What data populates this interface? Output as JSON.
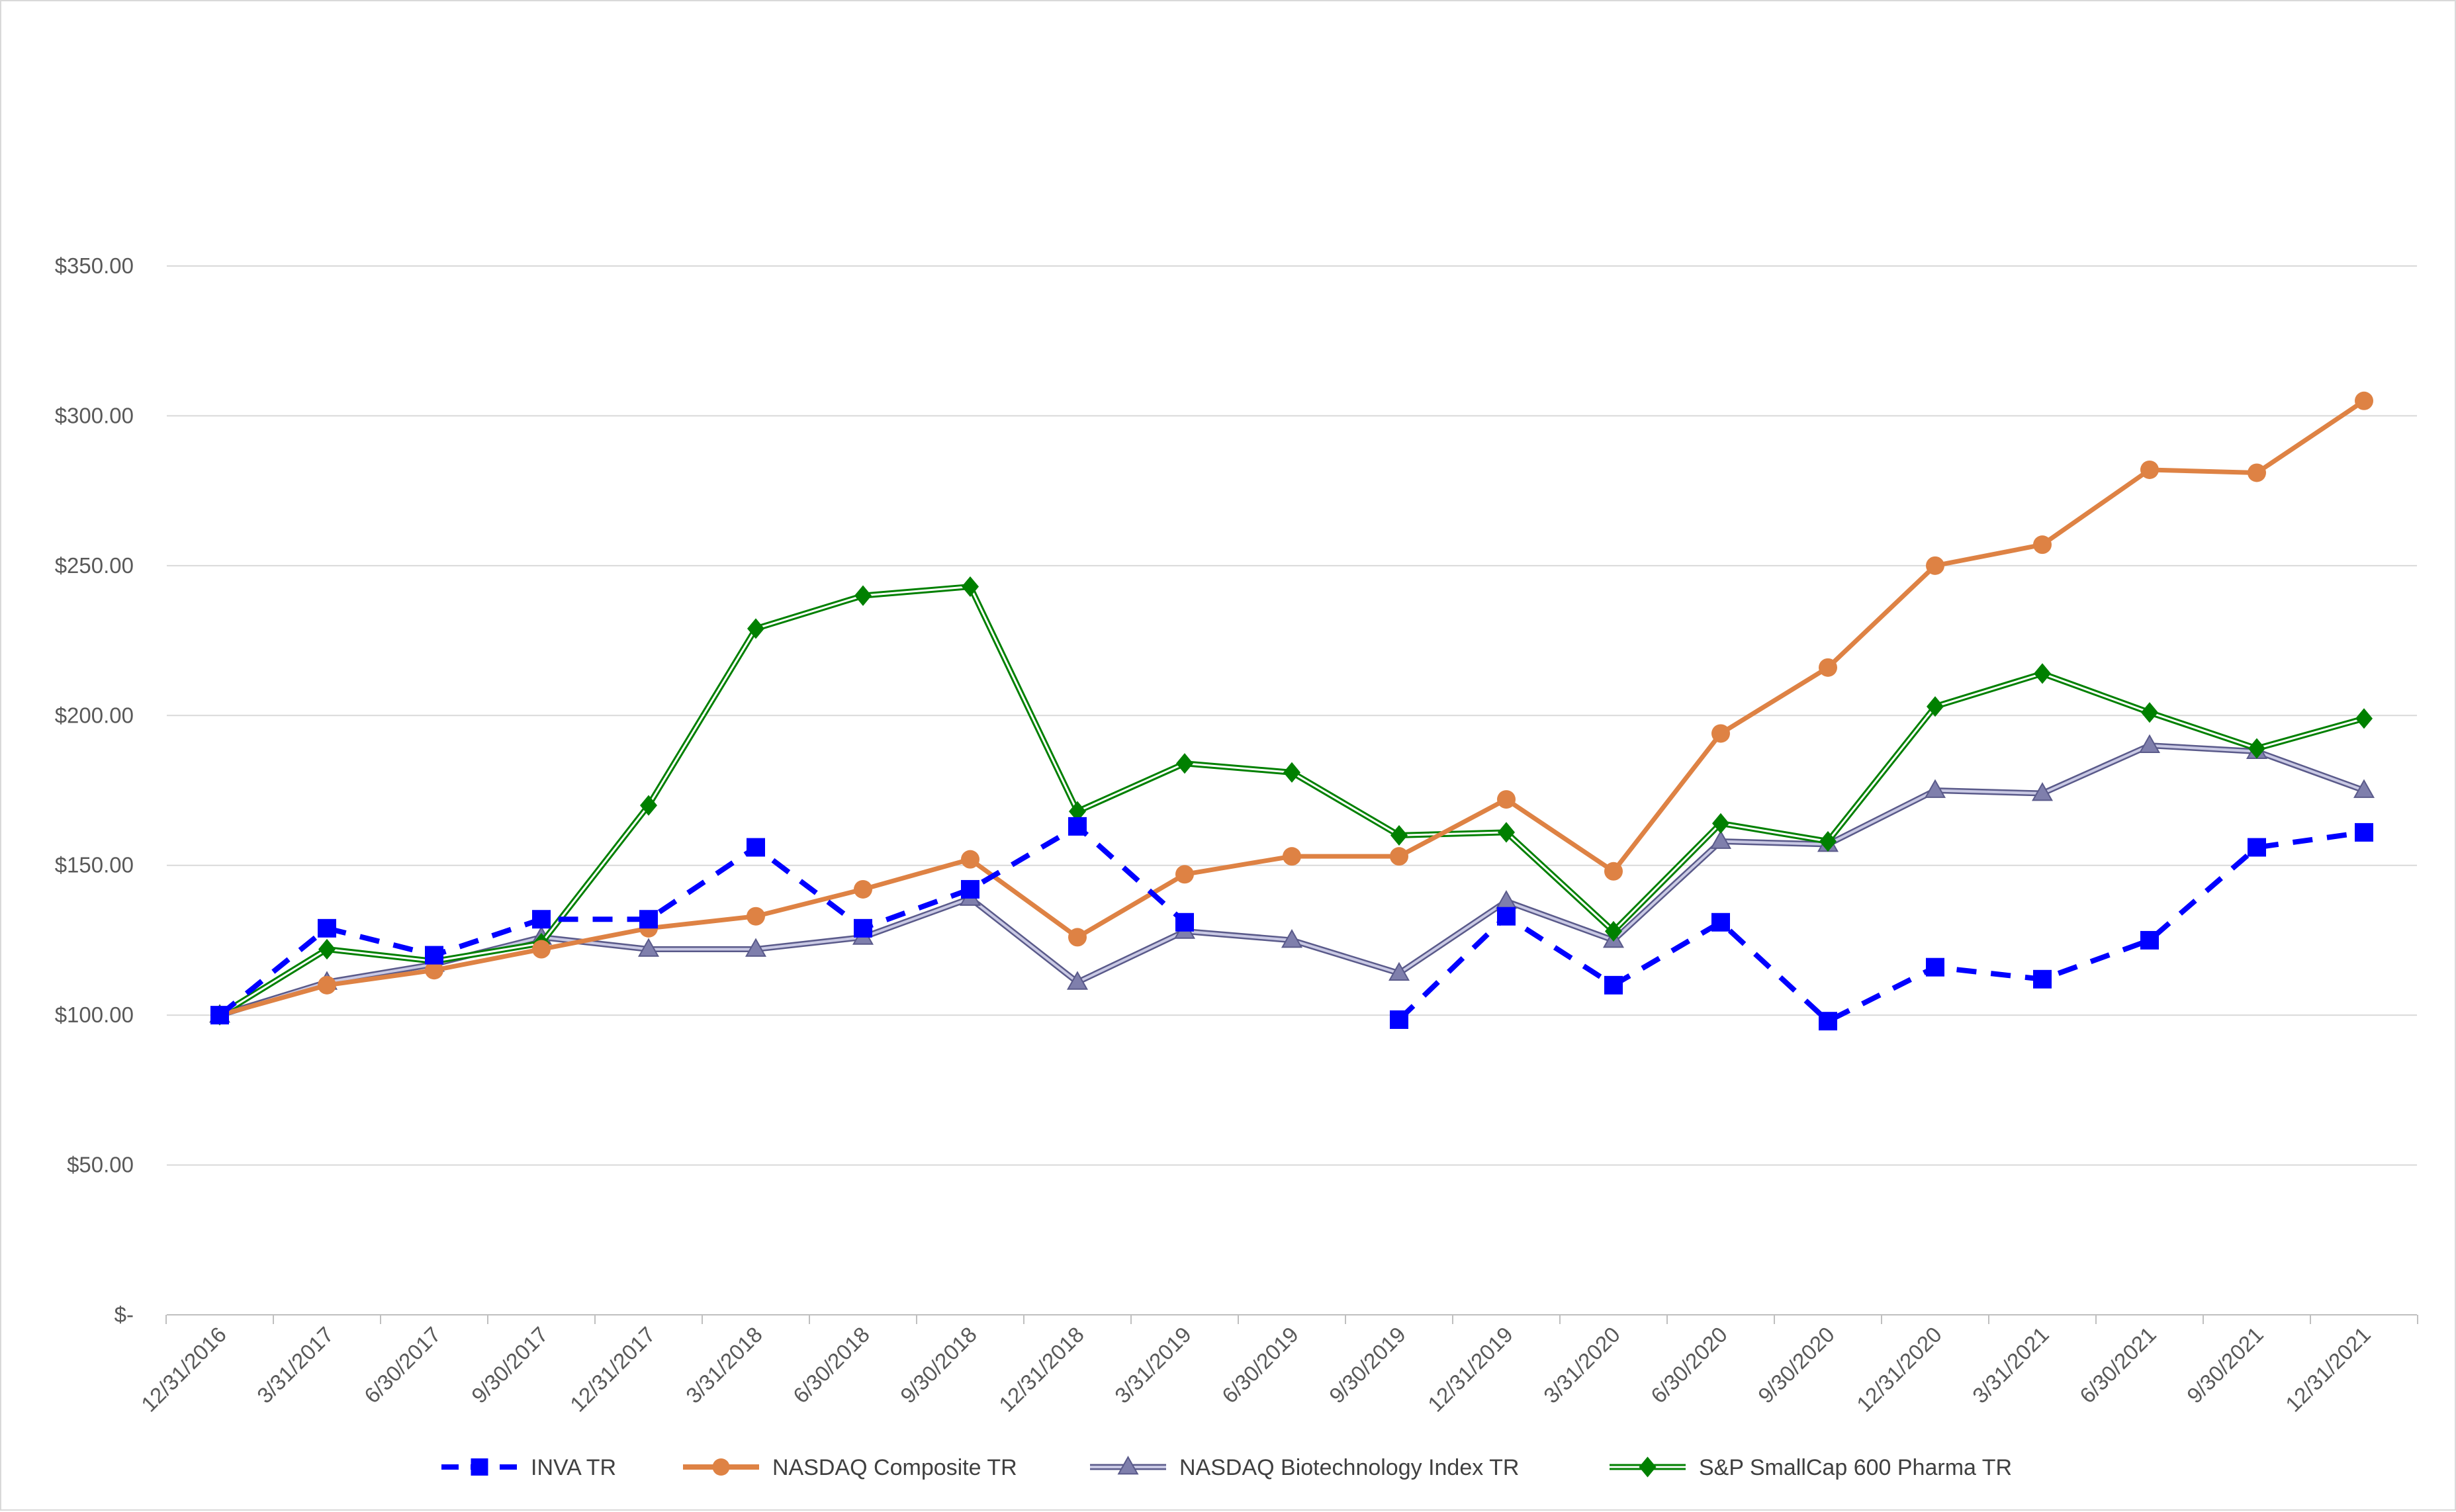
{
  "chart_data": {
    "type": "line",
    "title": "",
    "xlabel": "",
    "ylabel": "",
    "ylim": [
      0,
      350
    ],
    "y_ticks": [
      {
        "value": 0,
        "label": "$-"
      },
      {
        "value": 50,
        "label": "$50.00"
      },
      {
        "value": 100,
        "label": "$100.00"
      },
      {
        "value": 150,
        "label": "$150.00"
      },
      {
        "value": 200,
        "label": "$200.00"
      },
      {
        "value": 250,
        "label": "$250.00"
      },
      {
        "value": 300,
        "label": "$300.00"
      },
      {
        "value": 350,
        "label": "$350.00"
      }
    ],
    "grid": true,
    "legend_position": "bottom",
    "categories": [
      "12/31/2016",
      "3/31/2017",
      "6/30/2017",
      "9/30/2017",
      "12/31/2017",
      "3/31/2018",
      "6/30/2018",
      "9/30/2018",
      "12/31/2018",
      "3/31/2019",
      "6/30/2019",
      "9/30/2019",
      "12/31/2019",
      "3/31/2020",
      "6/30/2020",
      "9/30/2020",
      "12/31/2020",
      "3/31/2021",
      "6/30/2021",
      "9/30/2021",
      "12/31/2021"
    ],
    "series": [
      {
        "name": "INVA TR",
        "color": "#0000ff",
        "marker": "square",
        "line_style": "dashed",
        "values": [
          100,
          129,
          120,
          132,
          132,
          156,
          129,
          142,
          163,
          131,
          null,
          98.5,
          133,
          110,
          131,
          98,
          116,
          112,
          125,
          156,
          161
        ],
        "break_points": [
          10
        ]
      },
      {
        "name": "NASDAQ Composite TR",
        "color": "#de8244",
        "marker": "circle",
        "line_style": "solid",
        "values": [
          100,
          110,
          115,
          122,
          129,
          133,
          142,
          152,
          126,
          147,
          153,
          153,
          172,
          148,
          194,
          216,
          250,
          257,
          282,
          281,
          305
        ]
      },
      {
        "name": "NASDAQ Biotechnology Index TR",
        "color": "#7f7fac",
        "marker": "triangle",
        "line_style": "solid",
        "values": [
          100,
          111,
          117,
          126,
          122,
          122,
          126,
          139,
          111,
          128,
          125,
          114,
          138,
          125,
          158,
          157,
          175,
          174,
          190,
          188,
          175
        ]
      },
      {
        "name": "S&P SmallCap 600 Pharma TR",
        "color": "#008000",
        "marker": "diamond",
        "line_style": "double",
        "values": [
          100,
          122,
          118,
          124,
          170,
          229,
          240,
          243,
          168,
          184,
          181,
          160,
          161,
          128,
          164,
          158,
          203,
          214,
          201,
          189,
          199
        ]
      }
    ]
  }
}
